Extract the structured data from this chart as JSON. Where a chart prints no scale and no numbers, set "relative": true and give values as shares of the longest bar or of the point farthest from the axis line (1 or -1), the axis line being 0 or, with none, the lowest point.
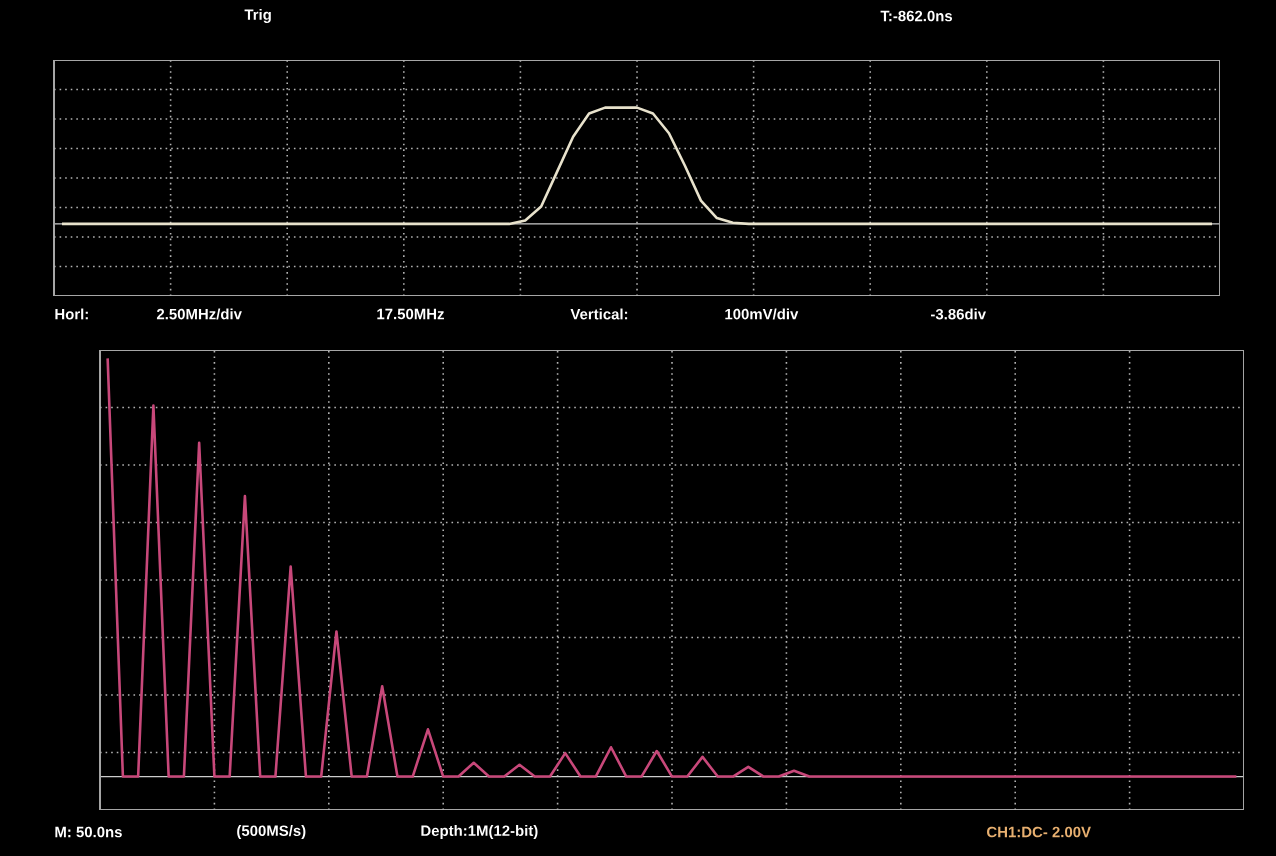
{
  "chart_data": [
    {
      "type": "line",
      "relative": true,
      "grid": true,
      "categories": [
        null,
        null,
        null,
        null,
        null,
        null,
        null,
        null,
        null,
        null,
        null,
        null,
        null,
        null,
        null,
        null,
        null,
        null,
        null,
        null,
        null,
        null,
        null,
        null,
        null,
        null,
        null,
        null,
        null,
        null,
        null,
        null,
        null,
        null,
        null,
        null,
        null,
        null,
        null,
        null,
        null,
        null,
        null,
        null,
        null,
        null,
        null,
        null,
        null,
        null,
        null,
        null,
        null,
        null,
        null,
        null,
        null,
        null,
        null,
        null,
        null,
        null,
        null,
        null,
        null,
        null,
        null,
        null,
        null,
        null,
        null,
        null,
        null
      ],
      "series": [
        {
          "color": "#e8e2cc",
          "values": [
            0,
            0,
            0,
            0,
            0,
            0,
            0,
            0,
            0,
            0,
            0,
            0,
            0,
            0,
            0,
            0,
            0,
            0,
            0,
            0,
            0,
            0,
            0,
            0,
            0,
            0,
            0,
            0,
            0,
            0.03,
            0.15,
            0.45,
            0.75,
            0.95,
            1,
            1,
            1,
            0.95,
            0.78,
            0.5,
            0.2,
            0.05,
            0.01,
            0,
            0,
            0,
            0,
            0,
            0,
            0,
            0,
            0,
            0,
            0,
            0,
            0,
            0,
            0,
            0,
            0,
            0,
            0,
            0,
            0,
            0,
            0,
            0,
            0,
            0,
            0,
            0,
            0,
            0
          ]
        }
      ],
      "annotations": [
        "Trig",
        "T:-862.0ns"
      ]
    },
    {
      "type": "line",
      "relative": true,
      "grid": true,
      "categories": [
        null,
        null,
        null,
        null,
        null,
        null,
        null,
        null,
        null,
        null,
        null,
        null,
        null,
        null,
        null,
        null,
        null,
        null,
        null,
        null,
        null,
        null,
        null,
        null,
        null,
        null,
        null,
        null,
        null,
        null,
        null,
        null,
        null,
        null,
        null,
        null,
        null,
        null,
        null,
        null,
        null,
        null,
        null,
        null,
        null,
        null,
        null,
        null,
        null,
        null,
        null,
        null,
        null,
        null,
        null,
        null,
        null,
        null,
        null,
        null,
        null,
        null,
        null,
        null,
        null,
        null,
        null,
        null,
        null,
        null,
        null,
        null,
        null,
        null,
        null
      ],
      "series": [
        {
          "color": "#c8487a",
          "values": [
            1,
            0,
            0,
            0.887,
            0,
            0,
            0.798,
            0,
            0,
            0.671,
            0,
            0,
            0.502,
            0,
            0,
            0.347,
            0,
            0,
            0.216,
            0,
            0,
            0.113,
            0,
            0,
            0.033,
            0,
            0,
            0.028,
            0,
            0,
            0.056,
            0,
            0,
            0.07,
            0,
            0,
            0.061,
            0,
            0,
            0.047,
            0,
            0,
            0.023,
            0,
            0,
            0.014,
            0,
            0,
            0,
            0,
            0,
            0,
            0,
            0,
            0,
            0,
            0,
            0,
            0,
            0,
            0,
            0,
            0,
            0,
            0,
            0,
            0,
            0,
            0,
            0,
            0,
            0,
            0,
            0,
            0
          ]
        }
      ],
      "annotations": [
        "Horl:",
        "2.50MHz/div",
        "17.50MHz",
        "Vertical:",
        "100mV/div",
        "-3.86div",
        "M: 50.0ns",
        "(500MS/s)",
        "Depth:1M(12-bit)",
        "CH1:DC- 2.00V"
      ]
    }
  ]
}
